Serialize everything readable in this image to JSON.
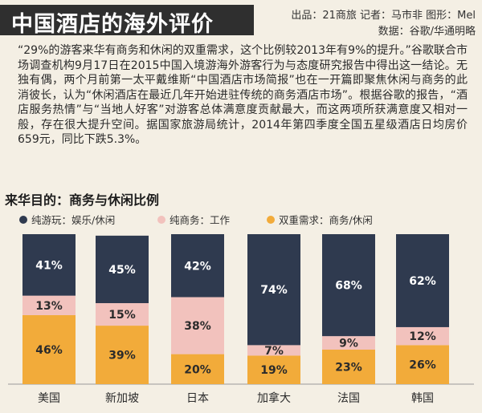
{
  "header": {
    "title": "中国酒店的海外评价",
    "credit_line1": "出品：21商旅 记者：马市非 图形：Mel",
    "credit_line2": "数据：谷歌/华通明略"
  },
  "body_text": "“29%的游客来华有商务和休闲的双重需求，这个比例较2013年有9%的提升。”谷歌联合市场调查机构9月17日在2015中国入境游海外游客行为与态度研究报告中得出这一结论。无独有偶，两个月前第一太平戴维斯“中国酒店市场简报”也在一开篇即聚焦休闲与商务的此消彼长，认为“休闲酒店在最近几年开始进驻传统的商务酒店市场”。根据谷歌的报告，“酒店服务热情”与“当地人好客”对游客总体满意度贡献最大，而这两项所获满意度又相对一般，存在很大提升空间。据国家旅游局统计，2014年第四季度全国五星级酒店日均房价659元，同比下跌5.3%。",
  "chart_data": {
    "type": "bar",
    "stacked": true,
    "title": "来华目的：商务与休闲比例",
    "categories": [
      "美国",
      "新加坡",
      "日本",
      "加拿大",
      "法国",
      "韩国"
    ],
    "series": [
      {
        "name": "双重需求：商务/休闲",
        "color": "#f2ab3a",
        "values": [
          46,
          39,
          20,
          19,
          23,
          26
        ]
      },
      {
        "name": "纯商务：工作",
        "color": "#f2c2bd",
        "values": [
          13,
          15,
          38,
          7,
          9,
          12
        ]
      },
      {
        "name": "纯游玩：娱乐/休闲",
        "color": "#2f3a4f",
        "values": [
          41,
          45,
          42,
          74,
          68,
          62
        ]
      }
    ],
    "legend_order": [
      "纯游玩：娱乐/休闲",
      "纯商务：工作",
      "双重需求：商务/休闲"
    ],
    "legend_position": "top",
    "value_label_format": "{v}%",
    "ylim": [
      0,
      100
    ]
  }
}
